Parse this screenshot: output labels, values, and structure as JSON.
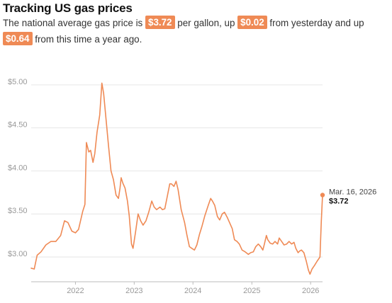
{
  "header": {
    "title": "Tracking US gas prices",
    "text_1": "The national average gas price is",
    "current_price": "$3.72",
    "text_2": "per gallon, up",
    "change_day": "$0.02",
    "text_3": "from yesterday and up",
    "change_year": "$0.64",
    "text_4": "from this time a year ago."
  },
  "colors": {
    "line": "#ef8a55",
    "badge_bg": "#ef8a55",
    "grid": "#e6e6e6",
    "axis_text": "#999999"
  },
  "chart_data": {
    "type": "line",
    "title": "",
    "xlabel": "",
    "ylabel": "",
    "x_domain": [
      "2021-04-01",
      "2026-03-16"
    ],
    "ylim": [
      2.72,
      5.18
    ],
    "y_ticks": [
      3.0,
      3.5,
      4.0,
      4.5,
      5.0
    ],
    "y_tick_labels": [
      "$3.00",
      "$3.50",
      "$4.00",
      "$4.50",
      "$5.00"
    ],
    "x_ticks": [
      "2022-01-01",
      "2023-01-01",
      "2024-01-01",
      "2025-01-01",
      "2026-01-01"
    ],
    "x_tick_labels": [
      "2022",
      "2023",
      "2024",
      "2025",
      "2026"
    ],
    "grid": true,
    "annotation": {
      "date_label": "Mar. 16, 2026",
      "value_label": "$3.72",
      "x": "2026-03-16",
      "y": 3.72
    },
    "series": [
      {
        "points": [
          [
            "2021-04-01",
            2.87
          ],
          [
            "2021-04-20",
            2.86
          ],
          [
            "2021-05-08",
            3.02
          ],
          [
            "2021-06-01",
            3.06
          ],
          [
            "2021-07-01",
            3.14
          ],
          [
            "2021-08-01",
            3.18
          ],
          [
            "2021-09-01",
            3.18
          ],
          [
            "2021-10-01",
            3.25
          ],
          [
            "2021-10-25",
            3.42
          ],
          [
            "2021-11-15",
            3.4
          ],
          [
            "2021-12-10",
            3.3
          ],
          [
            "2022-01-01",
            3.28
          ],
          [
            "2022-01-20",
            3.32
          ],
          [
            "2022-02-15",
            3.53
          ],
          [
            "2022-03-01",
            3.61
          ],
          [
            "2022-03-10",
            4.33
          ],
          [
            "2022-03-25",
            4.22
          ],
          [
            "2022-04-05",
            4.24
          ],
          [
            "2022-04-20",
            4.1
          ],
          [
            "2022-05-01",
            4.2
          ],
          [
            "2022-05-15",
            4.45
          ],
          [
            "2022-06-01",
            4.65
          ],
          [
            "2022-06-14",
            5.02
          ],
          [
            "2022-06-25",
            4.9
          ],
          [
            "2022-07-10",
            4.6
          ],
          [
            "2022-07-25",
            4.3
          ],
          [
            "2022-08-10",
            4.0
          ],
          [
            "2022-08-25",
            3.9
          ],
          [
            "2022-09-10",
            3.72
          ],
          [
            "2022-09-25",
            3.68
          ],
          [
            "2022-10-05",
            3.8
          ],
          [
            "2022-10-12",
            3.92
          ],
          [
            "2022-10-22",
            3.86
          ],
          [
            "2022-11-05",
            3.8
          ],
          [
            "2022-11-20",
            3.65
          ],
          [
            "2022-12-01",
            3.48
          ],
          [
            "2022-12-15",
            3.15
          ],
          [
            "2022-12-25",
            3.1
          ],
          [
            "2023-01-10",
            3.3
          ],
          [
            "2023-01-25",
            3.5
          ],
          [
            "2023-02-10",
            3.42
          ],
          [
            "2023-02-25",
            3.37
          ],
          [
            "2023-03-15",
            3.42
          ],
          [
            "2023-04-01",
            3.52
          ],
          [
            "2023-04-20",
            3.65
          ],
          [
            "2023-05-05",
            3.58
          ],
          [
            "2023-05-20",
            3.55
          ],
          [
            "2023-06-10",
            3.58
          ],
          [
            "2023-06-25",
            3.55
          ],
          [
            "2023-07-10",
            3.56
          ],
          [
            "2023-07-25",
            3.7
          ],
          [
            "2023-08-10",
            3.85
          ],
          [
            "2023-08-20",
            3.85
          ],
          [
            "2023-09-05",
            3.82
          ],
          [
            "2023-09-18",
            3.88
          ],
          [
            "2023-10-01",
            3.78
          ],
          [
            "2023-10-20",
            3.55
          ],
          [
            "2023-11-10",
            3.4
          ],
          [
            "2023-11-25",
            3.25
          ],
          [
            "2023-12-10",
            3.12
          ],
          [
            "2023-12-25",
            3.1
          ],
          [
            "2024-01-10",
            3.08
          ],
          [
            "2024-01-25",
            3.14
          ],
          [
            "2024-02-10",
            3.26
          ],
          [
            "2024-02-25",
            3.35
          ],
          [
            "2024-03-15",
            3.48
          ],
          [
            "2024-04-05",
            3.6
          ],
          [
            "2024-04-20",
            3.68
          ],
          [
            "2024-05-01",
            3.65
          ],
          [
            "2024-05-15",
            3.6
          ],
          [
            "2024-06-01",
            3.47
          ],
          [
            "2024-06-15",
            3.43
          ],
          [
            "2024-07-01",
            3.5
          ],
          [
            "2024-07-15",
            3.52
          ],
          [
            "2024-08-01",
            3.46
          ],
          [
            "2024-08-15",
            3.4
          ],
          [
            "2024-09-01",
            3.33
          ],
          [
            "2024-09-15",
            3.2
          ],
          [
            "2024-10-01",
            3.18
          ],
          [
            "2024-10-15",
            3.15
          ],
          [
            "2024-11-01",
            3.08
          ],
          [
            "2024-11-20",
            3.06
          ],
          [
            "2024-12-10",
            3.03
          ],
          [
            "2024-12-25",
            3.05
          ],
          [
            "2025-01-10",
            3.06
          ],
          [
            "2025-01-25",
            3.12
          ],
          [
            "2025-02-10",
            3.15
          ],
          [
            "2025-02-25",
            3.12
          ],
          [
            "2025-03-10",
            3.08
          ],
          [
            "2025-03-20",
            3.15
          ],
          [
            "2025-04-01",
            3.25
          ],
          [
            "2025-04-10",
            3.2
          ],
          [
            "2025-04-25",
            3.16
          ],
          [
            "2025-05-10",
            3.15
          ],
          [
            "2025-05-25",
            3.18
          ],
          [
            "2025-06-10",
            3.15
          ],
          [
            "2025-06-20",
            3.22
          ],
          [
            "2025-07-05",
            3.18
          ],
          [
            "2025-07-20",
            3.14
          ],
          [
            "2025-08-05",
            3.15
          ],
          [
            "2025-08-20",
            3.18
          ],
          [
            "2025-09-05",
            3.15
          ],
          [
            "2025-09-20",
            3.17
          ],
          [
            "2025-10-01",
            3.1
          ],
          [
            "2025-10-15",
            3.05
          ],
          [
            "2025-10-25",
            3.07
          ],
          [
            "2025-11-05",
            3.08
          ],
          [
            "2025-11-20",
            3.05
          ],
          [
            "2025-12-05",
            2.95
          ],
          [
            "2025-12-18",
            2.85
          ],
          [
            "2025-12-28",
            2.8
          ],
          [
            "2026-01-10",
            2.86
          ],
          [
            "2026-01-25",
            2.9
          ],
          [
            "2026-02-10",
            2.95
          ],
          [
            "2026-02-28",
            3.0
          ],
          [
            "2026-03-08",
            3.4
          ],
          [
            "2026-03-16",
            3.72
          ]
        ]
      }
    ]
  }
}
